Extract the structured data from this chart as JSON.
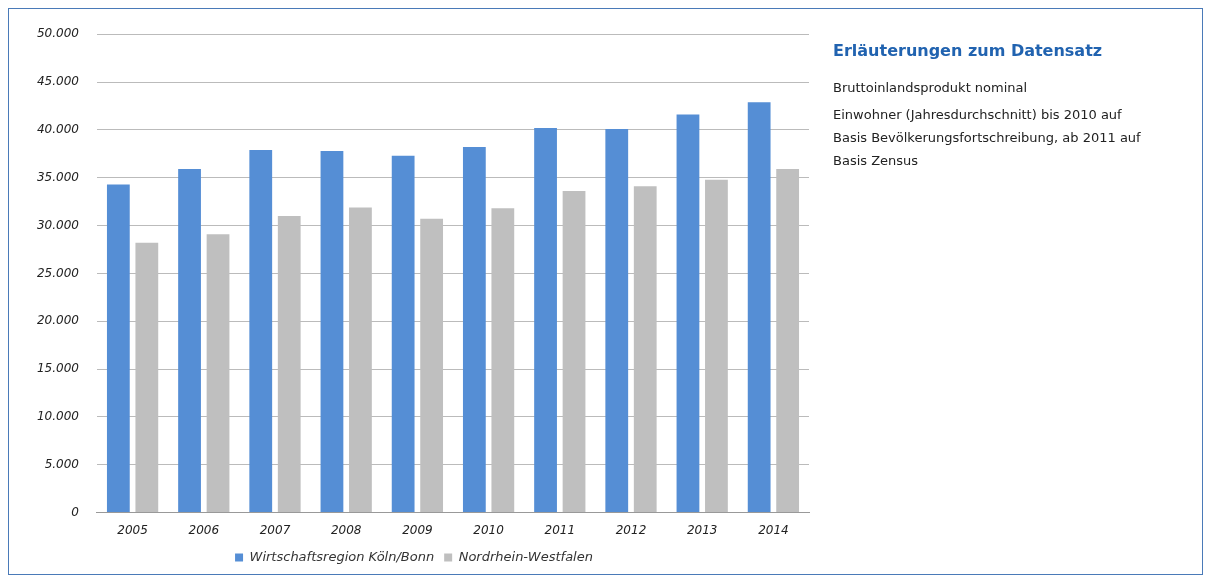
{
  "chart_data": {
    "type": "bar",
    "title": "Erläuterungen zum Datensatz",
    "annotations": [
      "Bruttoinlandsprodukt nominal",
      "Einwohner (Jahresdurchschnitt) bis 2010 auf Basis Bevölkerungsfortschreibung, ab 2011 auf Basis Zensus"
    ],
    "categories": [
      "2005",
      "2006",
      "2007",
      "2008",
      "2009",
      "2010",
      "2011",
      "2012",
      "2013",
      "2014"
    ],
    "series": [
      {
        "name": "Wirtschaftsregion Köln/Bonn",
        "color": "#558ed5",
        "values": [
          34300,
          35900,
          37900,
          37800,
          37300,
          38200,
          40200,
          40100,
          41600,
          42900
        ]
      },
      {
        "name": "Nordrhein-Westfalen",
        "color": "#bfbfbf",
        "values": [
          28200,
          29100,
          31000,
          31900,
          30700,
          31800,
          33600,
          34100,
          34800,
          35900
        ]
      }
    ],
    "ylim": [
      0,
      50000
    ],
    "yticks": [
      0,
      {
        "value": 5000,
        "label": "5.000"
      },
      {
        "value": 10000,
        "label": "10.000"
      },
      {
        "value": 15000,
        "label": "15.000"
      },
      {
        "value": 20000,
        "label": "20.000"
      },
      {
        "value": 25000,
        "label": "25.000"
      },
      {
        "value": 30000,
        "label": "30.000"
      },
      {
        "value": 35000,
        "label": "35.000"
      },
      {
        "value": 40000,
        "label": "40.000"
      },
      {
        "value": 45000,
        "label": "45.000"
      },
      {
        "value": 50000,
        "label": "50.000"
      }
    ],
    "grid": "y",
    "legend": "bottom"
  }
}
